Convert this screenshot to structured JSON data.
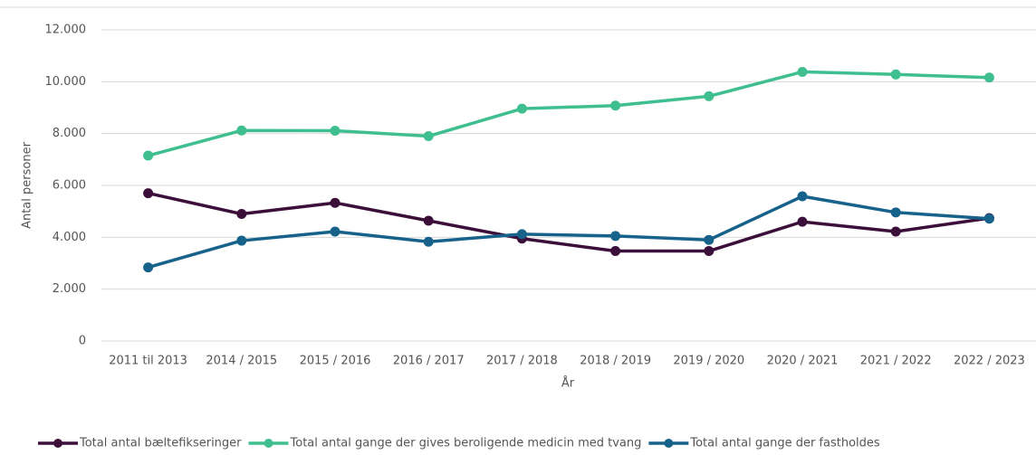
{
  "chart_data": {
    "type": "line",
    "x_label": "År",
    "y_label": "Antal personer",
    "categories": [
      "2011 til 2013",
      "2014 / 2015",
      "2015 / 2016",
      "2016 / 2017",
      "2017 / 2018",
      "2018 / 2019",
      "2019 / 2020",
      "2020 / 2021",
      "2021 / 2022",
      "2022 / 2023"
    ],
    "series": [
      {
        "name": "Total antal bæltefikseringer",
        "color": "#3b0f3a",
        "values": [
          5700,
          4900,
          5330,
          4640,
          3950,
          3470,
          3470,
          4600,
          4220,
          4740
        ]
      },
      {
        "name": "Total antal gange der gives beroligende medicin med tvang",
        "color": "#3fbf8f",
        "values": [
          7150,
          8120,
          8110,
          7900,
          8960,
          9080,
          9440,
          10380,
          10280,
          10160
        ]
      },
      {
        "name": "Total antal gange der fastholdes",
        "color": "#17628a",
        "values": [
          2840,
          3870,
          4220,
          3830,
          4120,
          4050,
          3900,
          5580,
          4960,
          4720
        ]
      }
    ],
    "ylim": [
      0,
      12000
    ],
    "yticks": [
      0,
      {
        "value": 2000,
        "label": "2.000"
      },
      {
        "value": 4000,
        "label": "4.000"
      },
      {
        "value": 6000,
        "label": "6.000"
      },
      {
        "value": 8000,
        "label": "8.000"
      },
      {
        "value": 10000,
        "label": "10.000"
      },
      {
        "value": 12000,
        "label": "12.000"
      }
    ],
    "grid": true,
    "legend": "bottom"
  }
}
